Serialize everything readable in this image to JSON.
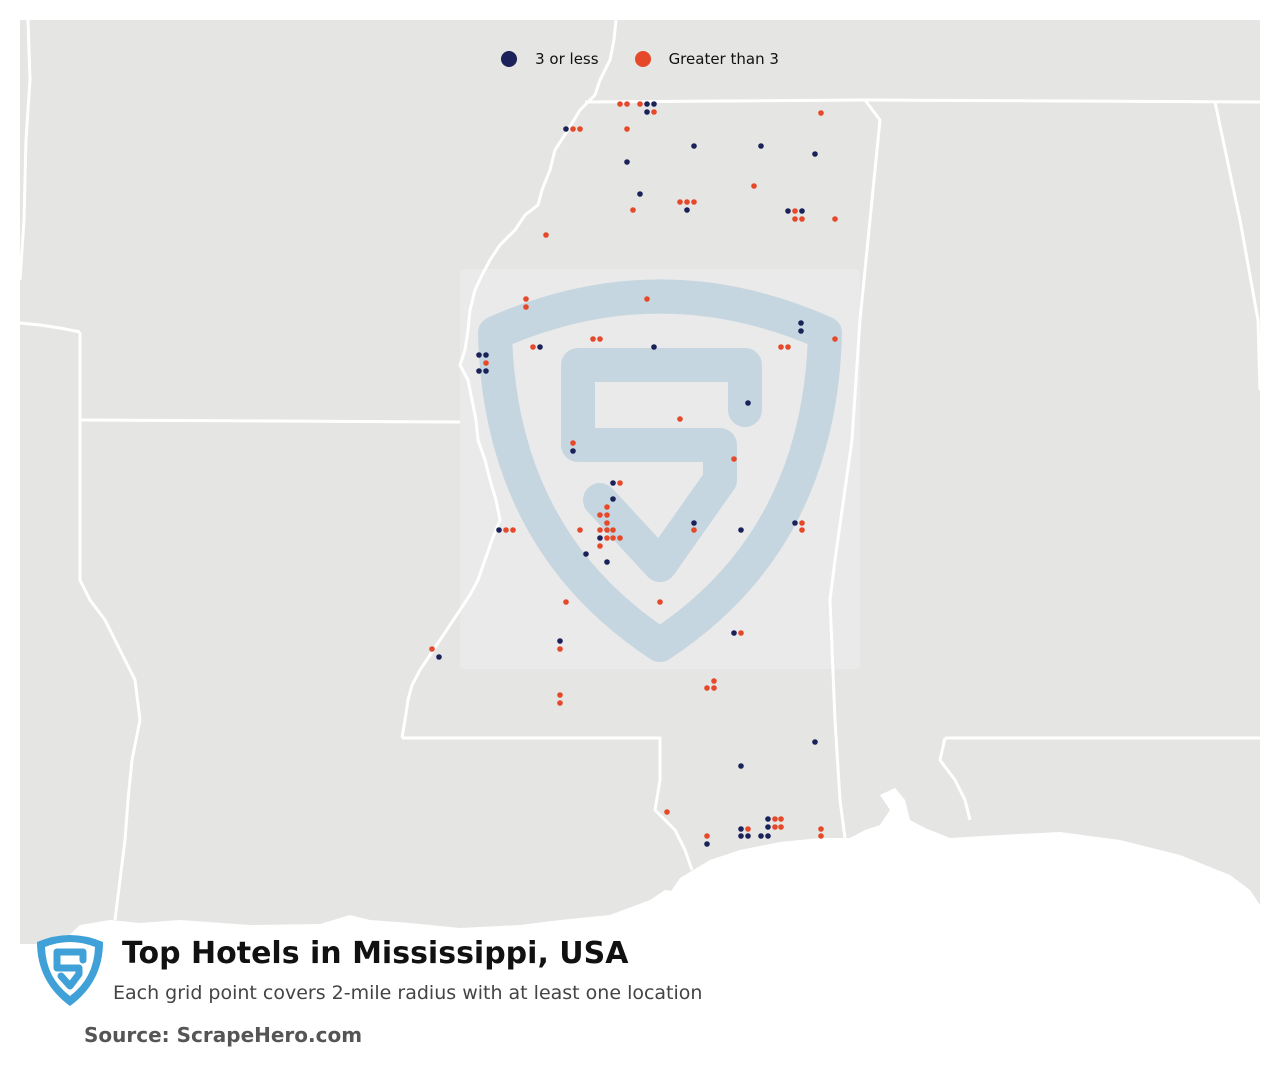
{
  "map": {
    "title": "Top Hotels in Mississippi, USA",
    "subtitle": "Each grid point covers 2-mile radius with at least one location",
    "source": "Source: ScrapeHero.com",
    "colors": {
      "land": "#e5e5e3",
      "water": "#ffffff",
      "border": "#ffffff",
      "low": "#1b2159",
      "high": "#e6482a",
      "watermark": "#c6d6e0",
      "logo": "#3fa1d8"
    },
    "legend": {
      "items": [
        {
          "label": "3 or less",
          "color": "#1b2159"
        },
        {
          "label": "Greater than 3",
          "color": "#e6482a"
        }
      ]
    },
    "icons": {
      "logo": "scrapehero-shield-logo",
      "watermark": "scrapehero-shield-watermark"
    }
  }
}
